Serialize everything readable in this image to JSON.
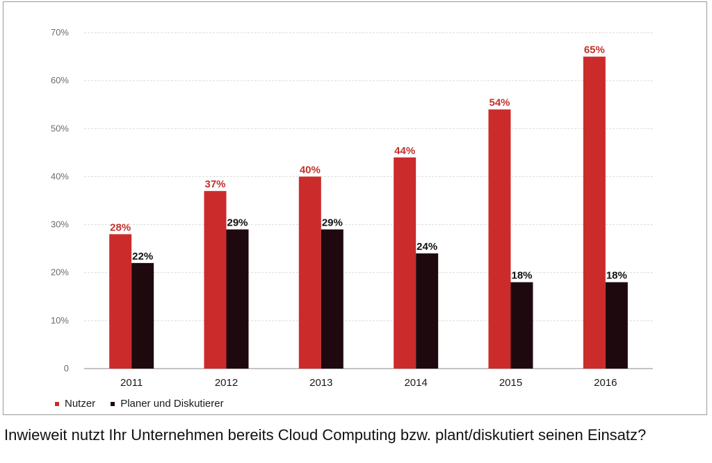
{
  "chart_data": {
    "type": "bar",
    "categories": [
      "2011",
      "2012",
      "2013",
      "2014",
      "2015",
      "2016"
    ],
    "series": [
      {
        "name": "Nutzer",
        "color": "#cc2b2b",
        "label_color": "#c2312c",
        "values": [
          28,
          37,
          40,
          44,
          54,
          65
        ],
        "labels": [
          "28%",
          "37%",
          "40%",
          "44%",
          "54%",
          "65%"
        ]
      },
      {
        "name": "Planer und Diskutierer",
        "color": "#1e0a0e",
        "label_color": "#111111",
        "values": [
          22,
          29,
          29,
          24,
          18,
          18
        ],
        "labels": [
          "22%",
          "29%",
          "29%",
          "24%",
          "18%",
          "18%"
        ]
      }
    ],
    "ylim": [
      0,
      70
    ],
    "yticks": [
      0,
      10,
      20,
      30,
      40,
      50,
      60,
      70
    ],
    "ytick_labels": [
      "0",
      "10%",
      "20%",
      "30%",
      "40%",
      "50%",
      "60%",
      "70%"
    ],
    "grid": true,
    "legend_position": "bottom-left",
    "title": "",
    "xlabel": "",
    "ylabel": ""
  },
  "legend": [
    {
      "label": "Nutzer",
      "color": "#cc2b2b"
    },
    {
      "label": "Planer und Diskutierer",
      "color": "#1e0a0e"
    }
  ],
  "caption": "Inwieweit nutzt Ihr Unternehmen bereits Cloud Computing bzw. plant/diskutiert seinen Einsatz?"
}
